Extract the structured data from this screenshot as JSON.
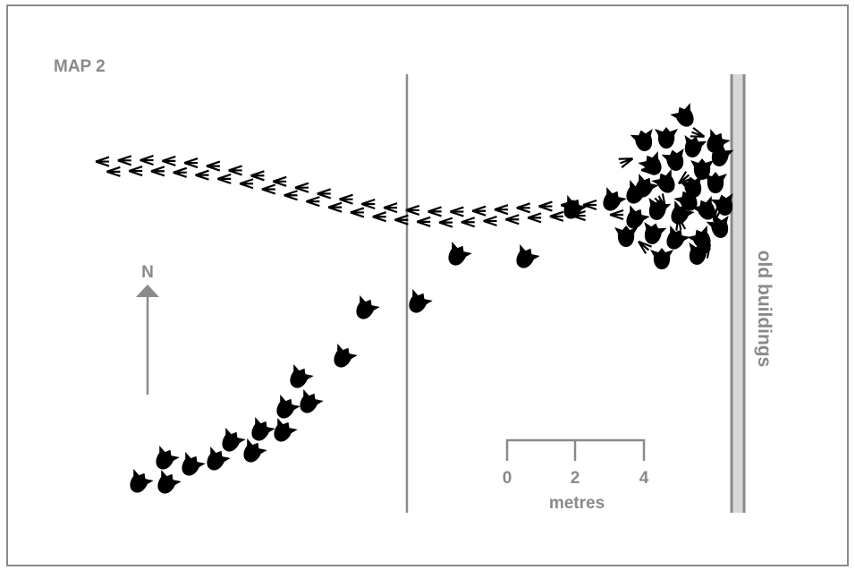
{
  "title": "MAP 2",
  "compass": {
    "label": "N"
  },
  "scale": {
    "ticks": [
      "0",
      "2",
      "4"
    ],
    "unit": "metres"
  },
  "labels": {
    "building": "old buildings"
  }
}
